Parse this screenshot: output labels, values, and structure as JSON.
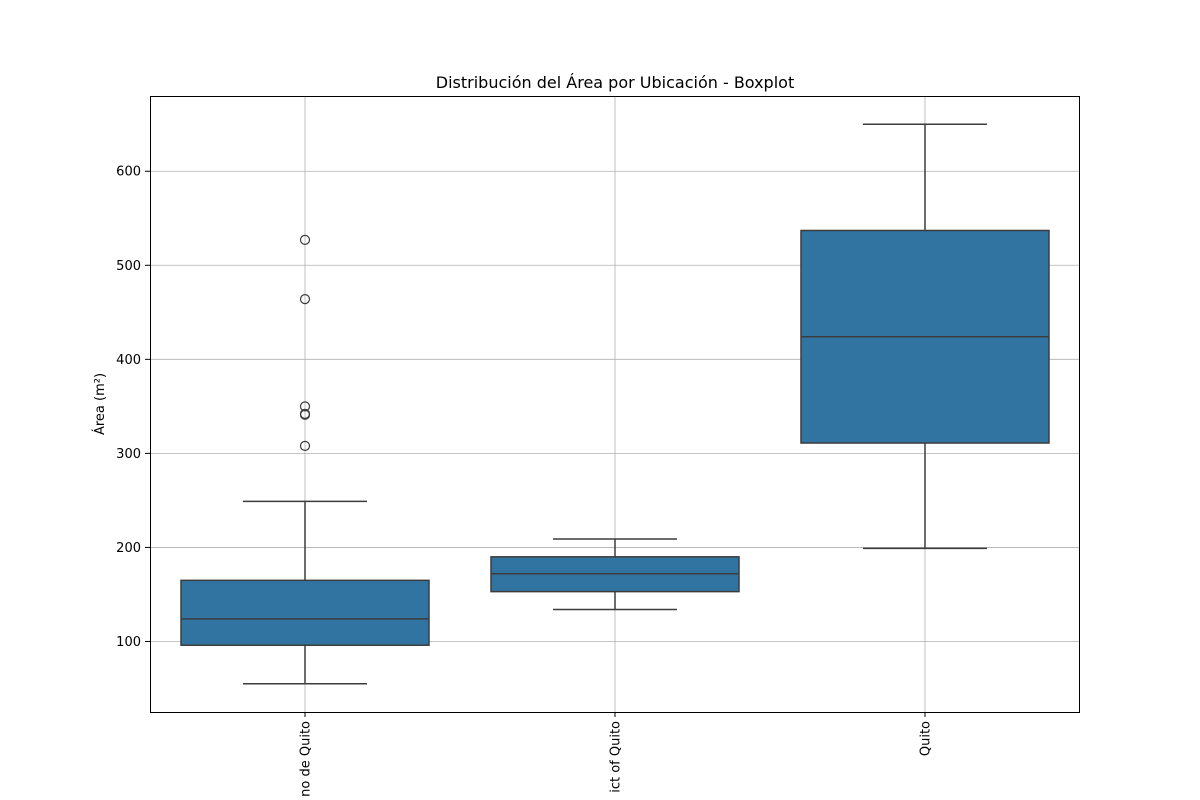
{
  "chart_data": {
    "type": "boxplot",
    "title": "Distribución del Área por Ubicación - Boxplot",
    "xlabel": "",
    "ylabel": "Área (m²)",
    "ylim": [
      25,
      680
    ],
    "yticks": [
      100,
      200,
      300,
      400,
      500,
      600
    ],
    "grid": true,
    "legend": "none",
    "colors": {
      "box_fill": "#3274a1",
      "line": "#3c3c3c",
      "grid": "#b0b0b0",
      "frame": "#000000"
    },
    "categories": [
      "no de Quito",
      "ict of Quito",
      "Quito"
    ],
    "boxes": [
      {
        "category": "no de Quito",
        "whisker_low": 55,
        "q1": 96,
        "median": 124,
        "q3": 165,
        "whisker_high": 249,
        "outliers": [
          308,
          341,
          342,
          350,
          464,
          527
        ]
      },
      {
        "category": "ict of Quito",
        "whisker_low": 134,
        "q1": 153,
        "median": 172,
        "q3": 190,
        "whisker_high": 209,
        "outliers": []
      },
      {
        "category": "Quito",
        "whisker_low": 199,
        "q1": 311,
        "median": 424,
        "q3": 537,
        "whisker_high": 650,
        "outliers": []
      }
    ]
  }
}
